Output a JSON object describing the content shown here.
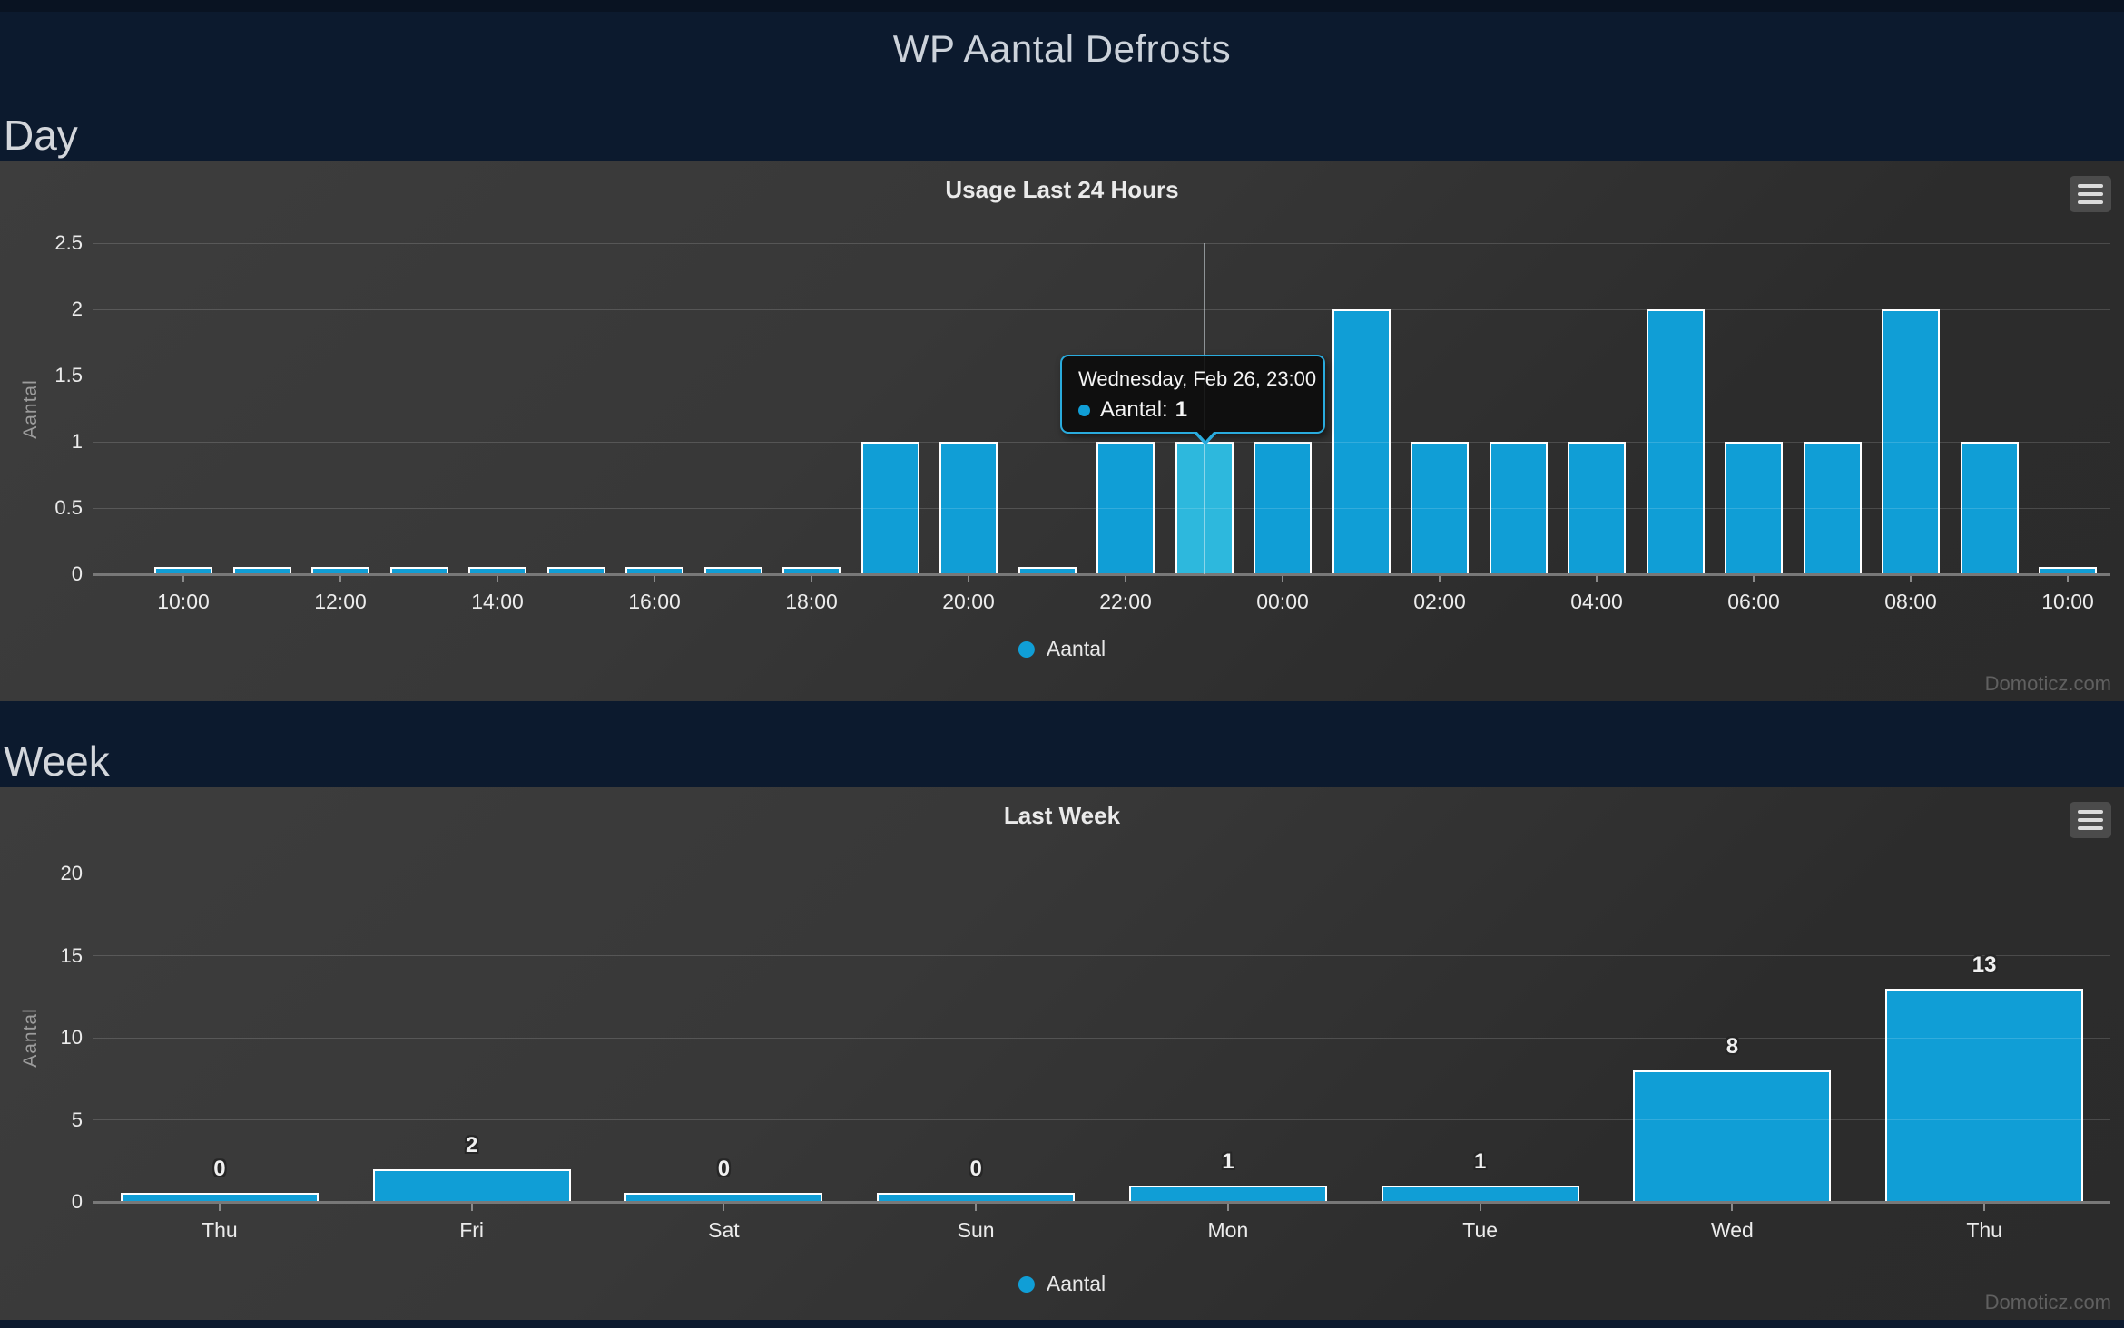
{
  "page": {
    "title": "WP Aantal Defrosts",
    "sections": [
      {
        "heading": "Day"
      },
      {
        "heading": "Week"
      }
    ],
    "watermark": "Domoticz.com",
    "icons": {
      "context_menu": "hamburger-menu-icon",
      "series_marker": "circle-marker-icon"
    }
  },
  "colors": {
    "bar": "#109ed6",
    "bar_highlight": "#2db8dd",
    "accent": "#2aabdd",
    "header_bg": "#0c1a2e",
    "panel_bg_start": "#3d3d3d",
    "panel_bg_end": "#2b2b2b"
  },
  "chart_data": [
    {
      "id": "day",
      "type": "bar",
      "title": "Usage Last 24 Hours",
      "ylabel": "Aantal",
      "legend": [
        "Aantal"
      ],
      "legend_position": "bottom-center",
      "grid": true,
      "ylim": [
        0,
        2.5
      ],
      "yticks": [
        "0",
        "0.5",
        "1",
        "1.5",
        "2",
        "2.5"
      ],
      "x": [
        "10:00",
        "11:00",
        "12:00",
        "13:00",
        "14:00",
        "15:00",
        "16:00",
        "17:00",
        "18:00",
        "19:00",
        "20:00",
        "21:00",
        "22:00",
        "23:00",
        "00:00",
        "01:00",
        "02:00",
        "03:00",
        "04:00",
        "05:00",
        "06:00",
        "07:00",
        "08:00",
        "09:00",
        "10:00"
      ],
      "xtick_labels": [
        "10:00",
        "12:00",
        "14:00",
        "16:00",
        "18:00",
        "20:00",
        "22:00",
        "00:00",
        "02:00",
        "04:00",
        "06:00",
        "08:00",
        "10:00"
      ],
      "values": [
        0,
        0,
        0,
        0,
        0,
        0,
        0,
        0,
        0,
        1,
        1,
        0,
        1,
        1,
        1,
        2,
        1,
        1,
        1,
        2,
        1,
        1,
        2,
        1,
        0
      ],
      "highlight_index": 13,
      "tooltip": {
        "title": "Wednesday, Feb 26, 23:00",
        "series_label": "Aantal:",
        "value": "1"
      }
    },
    {
      "id": "week",
      "type": "bar",
      "title": "Last Week",
      "ylabel": "Aantal",
      "legend": [
        "Aantal"
      ],
      "legend_position": "bottom-center",
      "grid": true,
      "ylim": [
        0,
        20
      ],
      "yticks": [
        "0",
        "5",
        "10",
        "15",
        "20"
      ],
      "categories": [
        "Thu",
        "Fri",
        "Sat",
        "Sun",
        "Mon",
        "Tue",
        "Wed",
        "Thu"
      ],
      "values": [
        0,
        2,
        0,
        0,
        1,
        1,
        8,
        13
      ],
      "data_labels": [
        "0",
        "2",
        "0",
        "0",
        "1",
        "1",
        "8",
        "13"
      ]
    }
  ]
}
